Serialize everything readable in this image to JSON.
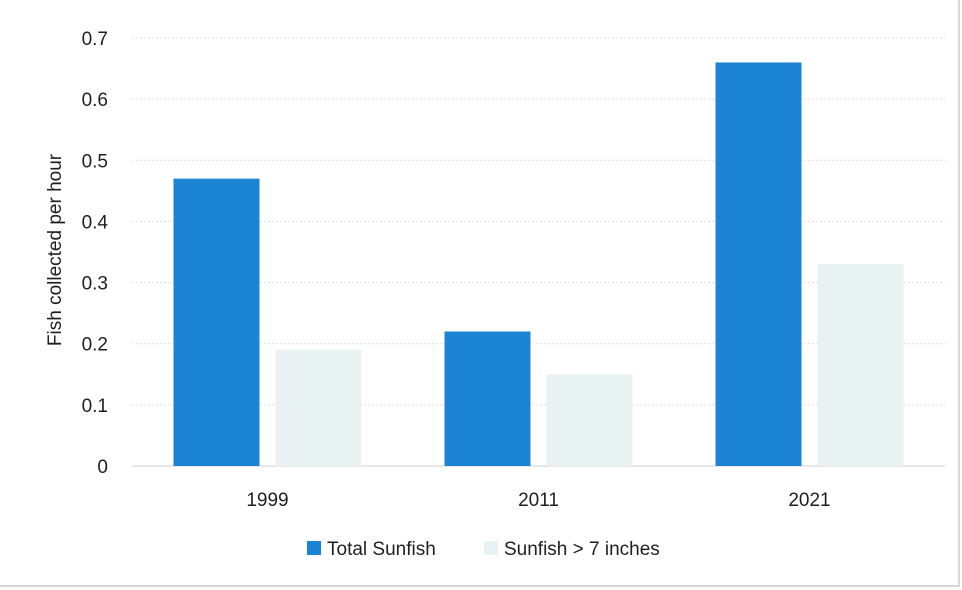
{
  "chart_data": {
    "type": "bar",
    "title": "",
    "xlabel": "",
    "ylabel": "Fish collected per hour",
    "ylim": [
      0,
      0.7
    ],
    "yticks": [
      "0",
      "0.1",
      "0.2",
      "0.3",
      "0.4",
      "0.5",
      "0.6",
      "0.7"
    ],
    "categories": [
      "1999",
      "2011",
      "2021"
    ],
    "series": [
      {
        "name": "Total Sunfish",
        "values": [
          0.47,
          0.22,
          0.66
        ],
        "color": "#1c84d4"
      },
      {
        "name": "Sunfish > 7 inches",
        "values": [
          0.19,
          0.15,
          0.33
        ],
        "color": "#e9f2f3"
      }
    ],
    "grid": true,
    "legend": "bottom"
  }
}
